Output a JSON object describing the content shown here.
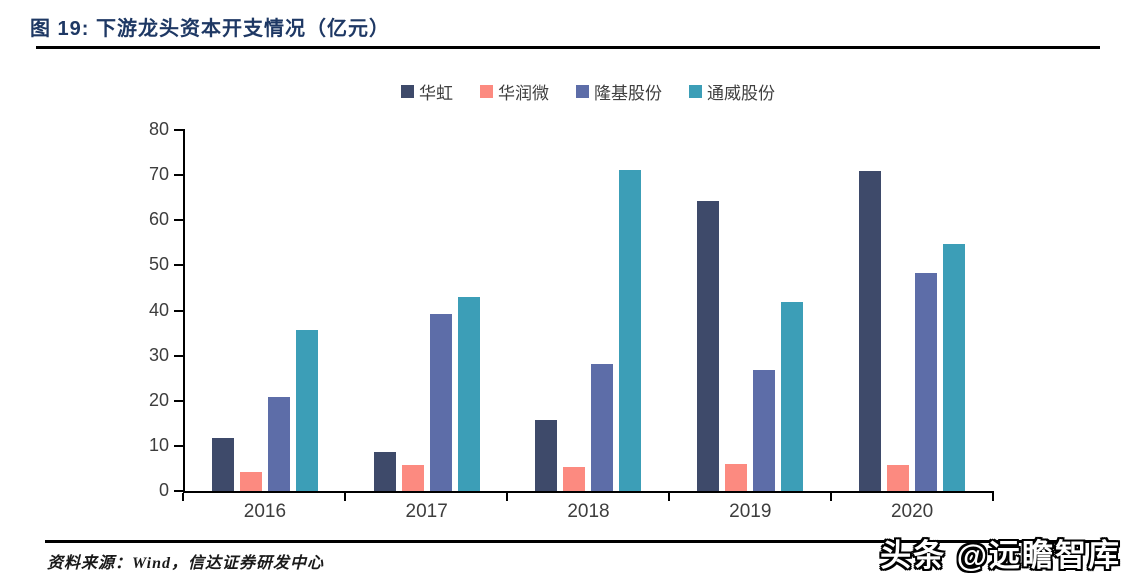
{
  "header": {
    "title": "图 19:  下游龙头资本开支情况（亿元）"
  },
  "chart_data": {
    "type": "bar",
    "title": "图 19: 下游龙头资本开支情况（亿元）",
    "categories": [
      "2016",
      "2017",
      "2018",
      "2019",
      "2020"
    ],
    "series": [
      {
        "name": "华虹",
        "color": "#3E4A6A",
        "values": [
          11.7,
          8.7,
          15.8,
          64.2,
          70.9
        ]
      },
      {
        "name": "华润微",
        "color": "#FC8A80",
        "values": [
          4.3,
          5.7,
          5.4,
          6.1,
          5.7
        ]
      },
      {
        "name": "隆基股份",
        "color": "#5D6DA8",
        "values": [
          20.8,
          39.3,
          28.2,
          26.9,
          48.3
        ]
      },
      {
        "name": "通威股份",
        "color": "#3C9EB7",
        "values": [
          35.6,
          43.1,
          71.2,
          42.0,
          54.8
        ]
      }
    ],
    "xlabel": "",
    "ylabel": "",
    "ylim": [
      0,
      80
    ],
    "ytick_step": 10,
    "yticks": [
      0,
      10,
      20,
      30,
      40,
      50,
      60,
      70,
      80
    ],
    "grid": false,
    "legend_position": "top"
  },
  "footer": {
    "source": "资料来源：Wind，信达证券研发中心",
    "watermark": "头条 @远瞻智库"
  },
  "colors": {
    "title_text": "#1E3864",
    "axis_line": "#000000",
    "tick_text": "#3D3D3D",
    "rule": "#000000"
  }
}
